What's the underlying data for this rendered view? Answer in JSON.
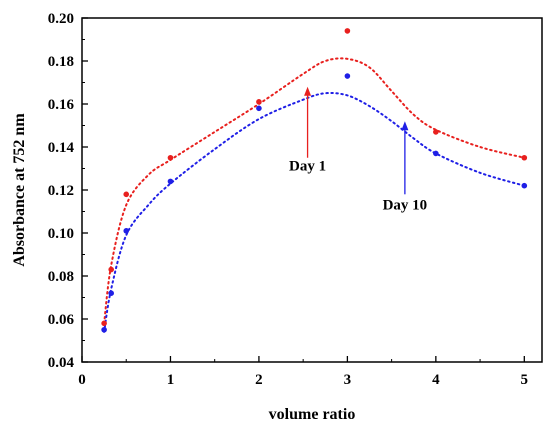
{
  "chart_data": {
    "type": "scatter",
    "xlabel": "volume ratio",
    "ylabel": "Absorbance at 752 nm",
    "xlim": [
      0,
      5.2
    ],
    "ylim": [
      0.04,
      0.2
    ],
    "xticks": [
      0,
      1,
      2,
      3,
      4,
      5
    ],
    "yticks": [
      0.04,
      0.06,
      0.08,
      0.1,
      0.12,
      0.14,
      0.16,
      0.18,
      0.2
    ],
    "xtick_labels": [
      "0",
      "1",
      "2",
      "3",
      "4",
      "5"
    ],
    "ytick_labels": [
      "0.04",
      "0.06",
      "0.08",
      "0.10",
      "0.12",
      "0.14",
      "0.16",
      "0.18",
      "0.20"
    ],
    "grid": false,
    "series": [
      {
        "color": "#e8201e",
        "x": [
          0.25,
          0.33,
          0.5,
          1,
          2,
          3,
          4,
          5
        ],
        "y": [
          0.058,
          0.083,
          0.118,
          0.135,
          0.161,
          0.194,
          0.147,
          0.135
        ],
        "fit": [
          [
            0.25,
            0.058
          ],
          [
            0.33,
            0.085
          ],
          [
            0.5,
            0.113
          ],
          [
            0.75,
            0.127
          ],
          [
            1,
            0.134
          ],
          [
            1.5,
            0.147
          ],
          [
            2,
            0.16
          ],
          [
            2.5,
            0.174
          ],
          [
            2.75,
            0.18
          ],
          [
            3,
            0.181
          ],
          [
            3.25,
            0.177
          ],
          [
            3.5,
            0.166
          ],
          [
            3.75,
            0.155
          ],
          [
            4,
            0.148
          ],
          [
            4.5,
            0.14
          ],
          [
            5,
            0.135
          ]
        ]
      },
      {
        "color": "#1f1fe6",
        "x": [
          0.25,
          0.33,
          0.5,
          1,
          2,
          3,
          4,
          5
        ],
        "y": [
          0.055,
          0.072,
          0.101,
          0.124,
          0.158,
          0.173,
          0.137,
          0.122
        ],
        "fit": [
          [
            0.25,
            0.054
          ],
          [
            0.33,
            0.074
          ],
          [
            0.5,
            0.099
          ],
          [
            0.75,
            0.113
          ],
          [
            1,
            0.123
          ],
          [
            1.5,
            0.139
          ],
          [
            2,
            0.153
          ],
          [
            2.5,
            0.162
          ],
          [
            2.75,
            0.165
          ],
          [
            3,
            0.164
          ],
          [
            3.25,
            0.159
          ],
          [
            3.5,
            0.152
          ],
          [
            3.75,
            0.144
          ],
          [
            4,
            0.137
          ],
          [
            4.5,
            0.128
          ],
          [
            5,
            0.122
          ]
        ]
      }
    ],
    "annotations": [
      {
        "text": "Day 1",
        "color": "#e8201e",
        "arrow_x": 2.55,
        "arrow_from_y": 0.135,
        "arrow_to_y": 0.168,
        "text_x": 2.55,
        "text_y": 0.129
      },
      {
        "text": "Day 10",
        "color": "#1f1fe6",
        "arrow_x": 3.65,
        "arrow_from_y": 0.118,
        "arrow_to_y": 0.152,
        "text_x": 3.65,
        "text_y": 0.111
      }
    ]
  }
}
